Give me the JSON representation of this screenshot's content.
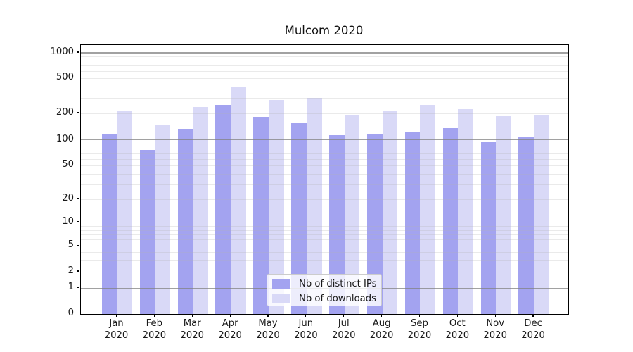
{
  "title": "Mulcom 2020",
  "legend": {
    "items": [
      {
        "label": "Nb of distinct IPs",
        "color": "#a3a3f0"
      },
      {
        "label": "Nb of downloads",
        "color": "#d9d9f7"
      }
    ]
  },
  "y_axis": {
    "tick_labels": [
      "0",
      "1",
      "2",
      "5",
      "10",
      "20",
      "50",
      "100",
      "200",
      "500",
      "1000"
    ],
    "tick_values": [
      0,
      1,
      2,
      5,
      10,
      20,
      50,
      100,
      200,
      500,
      1000
    ]
  },
  "x_axis": {
    "tick_labels_line1": [
      "Jan",
      "Feb",
      "Mar",
      "Apr",
      "May",
      "Jun",
      "Jul",
      "Aug",
      "Sep",
      "Oct",
      "Nov",
      "Dec"
    ],
    "tick_labels_line2": [
      "2020",
      "2020",
      "2020",
      "2020",
      "2020",
      "2020",
      "2020",
      "2020",
      "2020",
      "2020",
      "2020",
      "2020"
    ]
  },
  "chart_data": {
    "type": "bar",
    "title": "Mulcom 2020",
    "categories": [
      "Jan 2020",
      "Feb 2020",
      "Mar 2020",
      "Apr 2020",
      "May 2020",
      "Jun 2020",
      "Jul 2020",
      "Aug 2020",
      "Sep 2020",
      "Oct 2020",
      "Nov 2020",
      "Dec 2020"
    ],
    "series": [
      {
        "name": "Nb of distinct IPs",
        "color": "#a3a3f0",
        "values": [
          115,
          77,
          134,
          250,
          182,
          154,
          113,
          116,
          121,
          136,
          94,
          110
        ]
      },
      {
        "name": "Nb of downloads",
        "color": "#d9d9f7",
        "values": [
          215,
          145,
          234,
          390,
          280,
          300,
          189,
          211,
          250,
          222,
          185,
          187
        ]
      }
    ],
    "xlabel": "",
    "ylabel": "",
    "yscale": "symlog",
    "yticks": [
      0,
      1,
      2,
      5,
      10,
      20,
      50,
      100,
      200,
      500,
      1000
    ],
    "ylim": [
      0,
      1400
    ],
    "grid": "horizontal, dark major lines at powers of 10, light minor lines at 2-9 multiples, drawn over bars",
    "legend_position": "lower center inside plot"
  }
}
